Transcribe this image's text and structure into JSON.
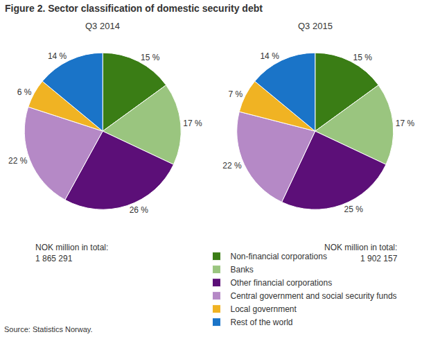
{
  "title": "Figure 2. Sector classification of domestic security debt",
  "source": "Source: Statistics Norway.",
  "legend": "bottom",
  "chart_data": [
    {
      "type": "pie",
      "title": "Q3 2014",
      "categories": [
        "Non-financial corporations",
        "Banks",
        "Other financial corporations",
        "Central government and social security funds",
        "Local government",
        "Rest of the world"
      ],
      "values": [
        15,
        17,
        26,
        22,
        6,
        14
      ],
      "value_labels": [
        "15 %",
        "17 %",
        "26 %",
        "22 %",
        "6 %",
        "14 %"
      ],
      "colors": [
        "#3a7d15",
        "#9ac57f",
        "#5c0f78",
        "#b589c6",
        "#f0b323",
        "#1a74c8"
      ],
      "data_labels": true,
      "note": "NOK million in total:",
      "total": {
        "value": 1865291,
        "label": "1 865 291"
      }
    },
    {
      "type": "pie",
      "title": "Q3 2015",
      "categories": [
        "Non-financial corporations",
        "Banks",
        "Other financial corporations",
        "Central government and social security funds",
        "Local government",
        "Rest of the world"
      ],
      "values": [
        15,
        17,
        25,
        22,
        7,
        14
      ],
      "value_labels": [
        "15 %",
        "17 %",
        "25 %",
        "22 %",
        "7 %",
        "14 %"
      ],
      "colors": [
        "#3a7d15",
        "#9ac57f",
        "#5c0f78",
        "#b589c6",
        "#f0b323",
        "#1a74c8"
      ],
      "data_labels": true,
      "note": "NOK million in total:",
      "total": {
        "value": 1902157,
        "label": "1 902 157"
      }
    }
  ]
}
